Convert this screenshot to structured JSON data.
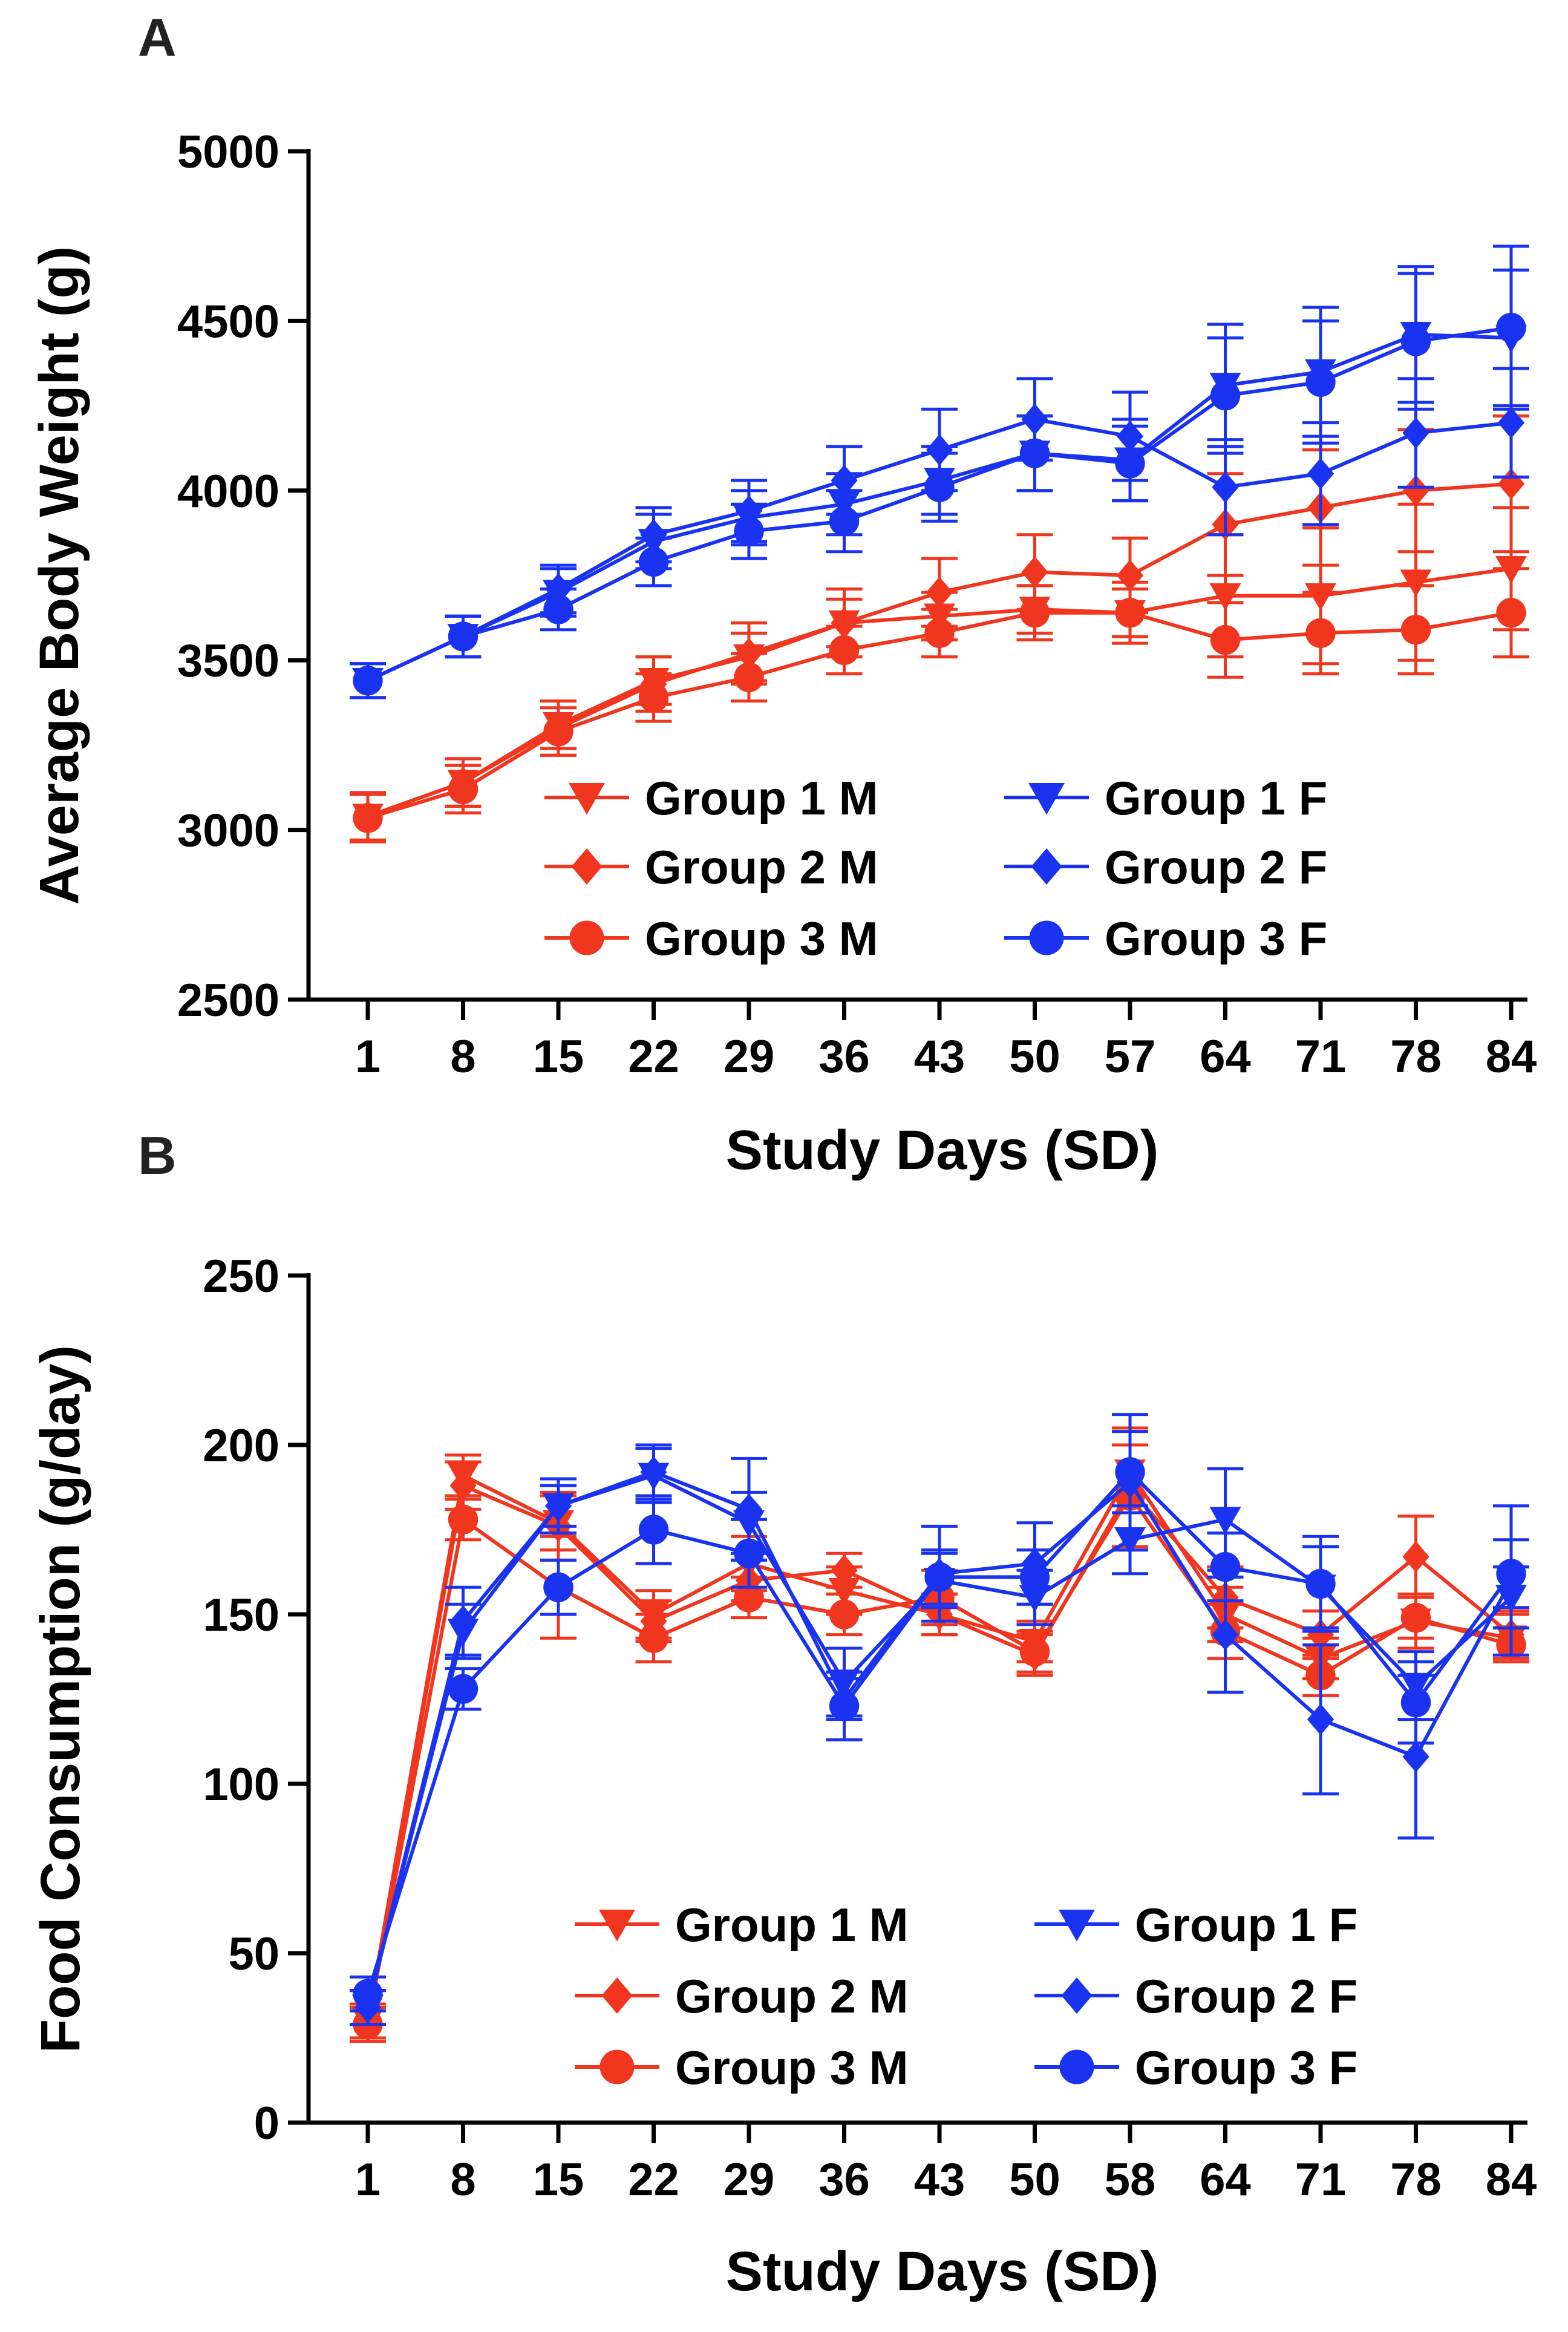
{
  "colors": {
    "M": "#f0361e",
    "F": "#1a33f0"
  },
  "chart_data": [
    {
      "panel": "A",
      "type": "line",
      "xlabel": "Study Days (SD)",
      "ylabel": "Average Body Weight (g)",
      "ylim": [
        2500,
        5000
      ],
      "yticks": [
        2500,
        3000,
        3500,
        4000,
        4500,
        5000
      ],
      "categories": [
        "1",
        "8",
        "15",
        "22",
        "29",
        "36",
        "43",
        "50",
        "57",
        "64",
        "71",
        "78",
        "84"
      ],
      "legend_position": "bottom-right",
      "series": [
        {
          "name": "Group 1 M",
          "sex": "M",
          "marker": "triangle-down",
          "values": [
            3040,
            3140,
            3310,
            3440,
            3510,
            3610,
            3630,
            3650,
            3640,
            3690,
            3690,
            3730,
            3770
          ],
          "errors": [
            70,
            70,
            70,
            70,
            70,
            70,
            70,
            70,
            70,
            180,
            200,
            230,
            180
          ]
        },
        {
          "name": "Group 2 M",
          "sex": "M",
          "marker": "diamond",
          "values": [
            3040,
            3140,
            3300,
            3430,
            3520,
            3610,
            3700,
            3760,
            3750,
            3900,
            3950,
            4000,
            4020
          ],
          "errors": [
            70,
            70,
            80,
            80,
            90,
            100,
            100,
            110,
            110,
            150,
            170,
            180,
            200
          ]
        },
        {
          "name": "Group 3 M",
          "sex": "M",
          "marker": "circle",
          "values": [
            3035,
            3120,
            3290,
            3390,
            3450,
            3530,
            3580,
            3640,
            3640,
            3560,
            3580,
            3590,
            3640
          ],
          "errors": [
            70,
            70,
            70,
            70,
            70,
            70,
            70,
            80,
            90,
            110,
            120,
            130,
            130
          ]
        },
        {
          "name": "Group 1 F",
          "sex": "F",
          "marker": "triangle-down",
          "values": [
            3440,
            3570,
            3700,
            3850,
            3920,
            3960,
            4030,
            4110,
            4090,
            4310,
            4350,
            4460,
            4450
          ],
          "errors": [
            50,
            60,
            70,
            80,
            80,
            90,
            100,
            110,
            120,
            180,
            190,
            200,
            200
          ]
        },
        {
          "name": "Group 2 F",
          "sex": "F",
          "marker": "diamond",
          "values": [
            3440,
            3570,
            3710,
            3870,
            3940,
            4030,
            4120,
            4210,
            4160,
            4010,
            4050,
            4170,
            4200
          ],
          "errors": [
            50,
            60,
            70,
            80,
            90,
            100,
            120,
            120,
            130,
            140,
            150,
            160,
            160
          ]
        },
        {
          "name": "Group 3 F",
          "sex": "F",
          "marker": "circle",
          "values": [
            3440,
            3570,
            3650,
            3790,
            3880,
            3910,
            4010,
            4110,
            4080,
            4280,
            4320,
            4440,
            4480
          ],
          "errors": [
            50,
            60,
            60,
            70,
            80,
            90,
            100,
            110,
            110,
            170,
            180,
            200,
            240
          ]
        }
      ]
    },
    {
      "panel": "B",
      "type": "line",
      "xlabel": "Study Days (SD)",
      "ylabel": "Food Consumption (g/day)",
      "ylim": [
        0,
        250
      ],
      "yticks": [
        0,
        50,
        100,
        150,
        200,
        250
      ],
      "categories": [
        "1",
        "8",
        "15",
        "22",
        "29",
        "36",
        "43",
        "50",
        "58",
        "64",
        "71",
        "78",
        "84"
      ],
      "legend_position": "bottom-right",
      "series": [
        {
          "name": "Group 1 M",
          "sex": "M",
          "marker": "triangle-down",
          "values": [
            30,
            191,
            177,
            150,
            165,
            157,
            150,
            142,
            192,
            150,
            137,
            148,
            143
          ],
          "errors": [
            5,
            6,
            8,
            7,
            8,
            7,
            6,
            6,
            12,
            8,
            6,
            8,
            7
          ]
        },
        {
          "name": "Group 2 M",
          "sex": "M",
          "marker": "diamond",
          "values": [
            30,
            188,
            176,
            148,
            160,
            163,
            150,
            138,
            187,
            155,
            144,
            167,
            144
          ],
          "errors": [
            5,
            7,
            10,
            6,
            6,
            5,
            6,
            6,
            18,
            9,
            7,
            12,
            7
          ]
        },
        {
          "name": "Group 3 M",
          "sex": "M",
          "marker": "circle",
          "values": [
            29,
            178,
            158,
            143,
            155,
            150,
            155,
            139,
            185,
            145,
            132,
            149,
            141
          ],
          "errors": [
            5,
            6,
            15,
            7,
            6,
            6,
            8,
            6,
            15,
            8,
            6,
            6,
            5
          ]
        },
        {
          "name": "Group 1 F",
          "sex": "F",
          "marker": "triangle-down",
          "values": [
            34,
            145,
            182,
            191,
            177,
            130,
            160,
            155,
            172,
            178,
            158,
            129,
            155
          ],
          "errors": [
            5,
            8,
            6,
            8,
            9,
            10,
            8,
            8,
            10,
            15,
            12,
            10,
            9
          ]
        },
        {
          "name": "Group 2 F",
          "sex": "F",
          "marker": "diamond",
          "values": [
            34,
            148,
            182,
            192,
            181,
            125,
            162,
            165,
            189,
            144,
            119,
            108,
            160
          ],
          "errors": [
            5,
            10,
            8,
            8,
            15,
            6,
            14,
            12,
            20,
            17,
            22,
            24,
            22
          ]
        },
        {
          "name": "Group 3 F",
          "sex": "F",
          "marker": "circle",
          "values": [
            38,
            128,
            158,
            175,
            168,
            123,
            161,
            161,
            192,
            164,
            159,
            124,
            162
          ],
          "errors": [
            5,
            6,
            8,
            10,
            10,
            10,
            8,
            8,
            12,
            10,
            14,
            12,
            10
          ]
        }
      ]
    }
  ]
}
